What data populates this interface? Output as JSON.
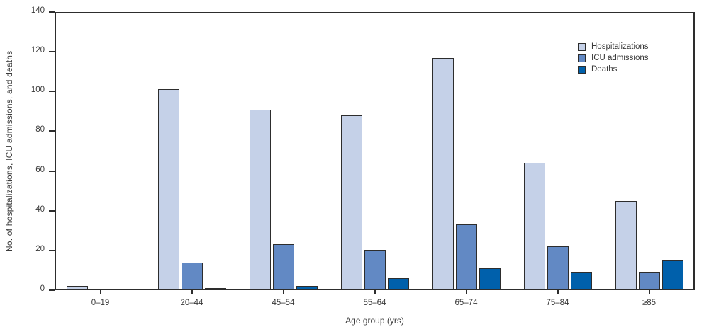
{
  "chart_data": {
    "type": "bar",
    "title": "",
    "xlabel": "Age group (yrs)",
    "ylabel": "No. of hospitalizations, ICU admissions, and deaths",
    "categories": [
      "0–19",
      "20–44",
      "45–54",
      "55–64",
      "65–74",
      "75–84",
      "≥85"
    ],
    "series": [
      {
        "name": "Hospitalizations",
        "color": "#c5d1e8",
        "values": [
          2,
          101,
          91,
          88,
          117,
          64,
          45
        ]
      },
      {
        "name": "ICU admissions",
        "color": "#6289c4",
        "values": [
          0,
          14,
          23,
          20,
          33,
          22,
          9
        ]
      },
      {
        "name": "Deaths",
        "color": "#0060ab",
        "values": [
          0,
          1,
          2,
          6,
          11,
          9,
          15
        ]
      }
    ],
    "ylim": [
      0,
      140
    ],
    "yticks": [
      0,
      20,
      40,
      60,
      80,
      100,
      120,
      140
    ],
    "grid": false,
    "legend_position": "top-right"
  },
  "theme": {
    "axis_color": "#2d2d2d",
    "text_color": "#3a3a3a",
    "background": "#ffffff"
  }
}
